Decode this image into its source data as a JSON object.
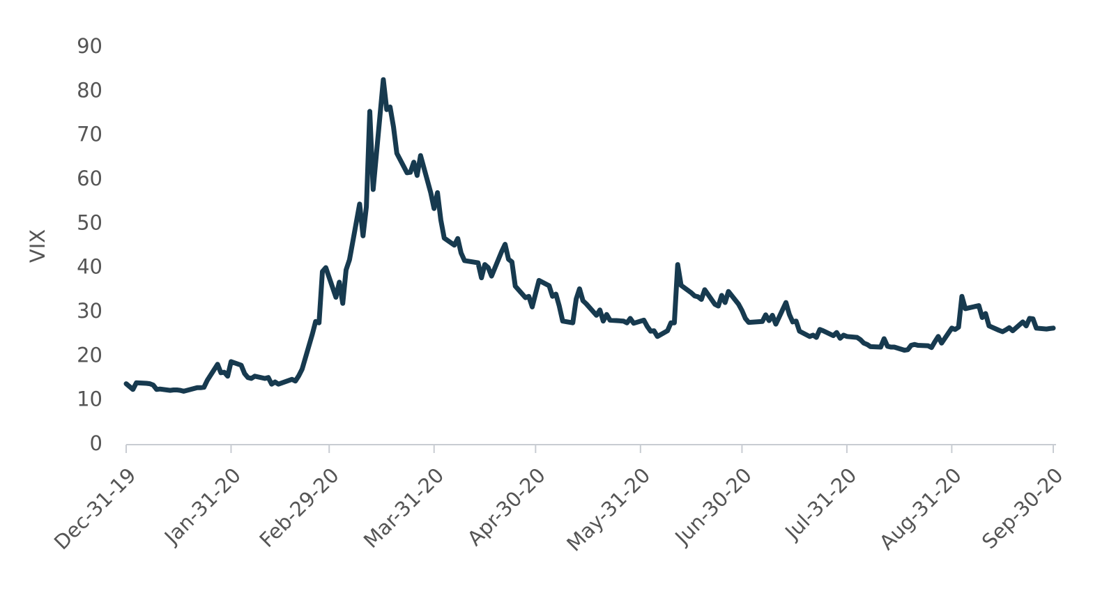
{
  "chart_data": {
    "type": "line",
    "ylabel": "VIX",
    "x": [
      "2019-12-31",
      "2020-01-02",
      "2020-01-03",
      "2020-01-06",
      "2020-01-07",
      "2020-01-08",
      "2020-01-09",
      "2020-01-10",
      "2020-01-13",
      "2020-01-14",
      "2020-01-15",
      "2020-01-16",
      "2020-01-17",
      "2020-01-21",
      "2020-01-22",
      "2020-01-23",
      "2020-01-24",
      "2020-01-27",
      "2020-01-28",
      "2020-01-29",
      "2020-01-30",
      "2020-01-31",
      "2020-02-03",
      "2020-02-04",
      "2020-02-05",
      "2020-02-06",
      "2020-02-07",
      "2020-02-10",
      "2020-02-11",
      "2020-02-12",
      "2020-02-13",
      "2020-02-14",
      "2020-02-18",
      "2020-02-19",
      "2020-02-20",
      "2020-02-21",
      "2020-02-24",
      "2020-02-25",
      "2020-02-26",
      "2020-02-27",
      "2020-02-28",
      "2020-03-02",
      "2020-03-03",
      "2020-03-04",
      "2020-03-05",
      "2020-03-06",
      "2020-03-09",
      "2020-03-10",
      "2020-03-11",
      "2020-03-12",
      "2020-03-13",
      "2020-03-16",
      "2020-03-17",
      "2020-03-18",
      "2020-03-19",
      "2020-03-20",
      "2020-03-23",
      "2020-03-24",
      "2020-03-25",
      "2020-03-26",
      "2020-03-27",
      "2020-03-30",
      "2020-03-31",
      "2020-04-01",
      "2020-04-02",
      "2020-04-03",
      "2020-04-06",
      "2020-04-07",
      "2020-04-08",
      "2020-04-09",
      "2020-04-13",
      "2020-04-14",
      "2020-04-15",
      "2020-04-16",
      "2020-04-17",
      "2020-04-20",
      "2020-04-21",
      "2020-04-22",
      "2020-04-23",
      "2020-04-24",
      "2020-04-27",
      "2020-04-28",
      "2020-04-29",
      "2020-04-30",
      "2020-05-01",
      "2020-05-04",
      "2020-05-05",
      "2020-05-06",
      "2020-05-07",
      "2020-05-08",
      "2020-05-11",
      "2020-05-12",
      "2020-05-13",
      "2020-05-14",
      "2020-05-15",
      "2020-05-18",
      "2020-05-19",
      "2020-05-20",
      "2020-05-21",
      "2020-05-22",
      "2020-05-26",
      "2020-05-27",
      "2020-05-28",
      "2020-05-29",
      "2020-06-01",
      "2020-06-02",
      "2020-06-03",
      "2020-06-04",
      "2020-06-05",
      "2020-06-08",
      "2020-06-09",
      "2020-06-10",
      "2020-06-11",
      "2020-06-12",
      "2020-06-15",
      "2020-06-16",
      "2020-06-17",
      "2020-06-18",
      "2020-06-19",
      "2020-06-22",
      "2020-06-23",
      "2020-06-24",
      "2020-06-25",
      "2020-06-26",
      "2020-06-29",
      "2020-06-30",
      "2020-07-01",
      "2020-07-02",
      "2020-07-06",
      "2020-07-07",
      "2020-07-08",
      "2020-07-09",
      "2020-07-10",
      "2020-07-13",
      "2020-07-14",
      "2020-07-15",
      "2020-07-16",
      "2020-07-17",
      "2020-07-20",
      "2020-07-21",
      "2020-07-22",
      "2020-07-23",
      "2020-07-24",
      "2020-07-27",
      "2020-07-28",
      "2020-07-29",
      "2020-07-30",
      "2020-07-31",
      "2020-08-03",
      "2020-08-04",
      "2020-08-05",
      "2020-08-06",
      "2020-08-07",
      "2020-08-10",
      "2020-08-11",
      "2020-08-12",
      "2020-08-13",
      "2020-08-14",
      "2020-08-17",
      "2020-08-18",
      "2020-08-19",
      "2020-08-20",
      "2020-08-21",
      "2020-08-24",
      "2020-08-25",
      "2020-08-26",
      "2020-08-27",
      "2020-08-28",
      "2020-08-31",
      "2020-09-01",
      "2020-09-02",
      "2020-09-03",
      "2020-09-04",
      "2020-09-08",
      "2020-09-09",
      "2020-09-10",
      "2020-09-11",
      "2020-09-14",
      "2020-09-15",
      "2020-09-16",
      "2020-09-17",
      "2020-09-18",
      "2020-09-21",
      "2020-09-22",
      "2020-09-23",
      "2020-09-24",
      "2020-09-25",
      "2020-09-28",
      "2020-09-29",
      "2020-09-30"
    ],
    "series": [
      {
        "color": "#173a4f",
        "values": [
          13.8,
          12.5,
          14.0,
          13.9,
          13.8,
          13.5,
          12.5,
          12.6,
          12.3,
          12.4,
          12.4,
          12.3,
          12.1,
          12.9,
          12.9,
          13.0,
          14.6,
          18.2,
          16.3,
          16.4,
          15.5,
          18.8,
          18.0,
          16.1,
          15.2,
          15.0,
          15.5,
          15.0,
          15.2,
          13.7,
          14.2,
          13.7,
          14.8,
          14.4,
          15.6,
          17.1,
          25.0,
          27.9,
          27.6,
          39.2,
          40.1,
          33.4,
          36.8,
          32.0,
          39.6,
          41.9,
          54.5,
          47.3,
          53.9,
          75.5,
          57.8,
          82.7,
          75.9,
          76.5,
          72.0,
          66.0,
          61.6,
          61.7,
          64.0,
          61.0,
          65.5,
          57.1,
          53.5,
          57.1,
          50.9,
          46.8,
          45.2,
          46.7,
          43.4,
          41.7,
          41.2,
          37.8,
          40.8,
          40.1,
          38.2,
          43.8,
          45.4,
          42.0,
          41.4,
          35.9,
          33.3,
          33.6,
          31.2,
          34.2,
          37.2,
          36.0,
          33.6,
          34.1,
          31.4,
          28.0,
          27.6,
          33.0,
          35.3,
          32.6,
          31.9,
          29.3,
          30.5,
          28.0,
          29.5,
          28.2,
          28.0,
          27.6,
          28.6,
          27.5,
          28.2,
          26.8,
          25.7,
          25.8,
          24.5,
          25.8,
          27.6,
          27.6,
          40.8,
          36.1,
          34.4,
          33.7,
          33.5,
          32.9,
          35.1,
          31.8,
          31.4,
          33.8,
          32.2,
          34.7,
          31.8,
          30.4,
          28.6,
          27.7,
          27.9,
          29.4,
          28.1,
          29.3,
          27.3,
          32.2,
          29.5,
          27.8,
          28.0,
          25.7,
          24.5,
          24.8,
          24.3,
          26.1,
          25.8,
          24.7,
          25.4,
          24.1,
          24.8,
          24.5,
          24.3,
          23.8,
          23.0,
          22.7,
          22.2,
          22.1,
          24.0,
          22.3,
          22.1,
          22.1,
          21.4,
          21.5,
          22.5,
          22.7,
          22.5,
          22.4,
          22.0,
          23.3,
          24.5,
          23.0,
          26.4,
          26.1,
          26.6,
          33.6,
          30.8,
          31.5,
          28.8,
          29.7,
          26.9,
          25.9,
          25.6,
          26.0,
          26.5,
          25.8,
          27.8,
          26.9,
          28.6,
          28.5,
          26.4,
          26.2,
          26.3,
          26.4
        ]
      }
    ],
    "xlim": [
      "2019-12-31",
      "2020-09-30"
    ],
    "xticks": [
      {
        "value": "2019-12-31",
        "label": "Dec-31-19"
      },
      {
        "value": "2020-01-31",
        "label": "Jan-31-20"
      },
      {
        "value": "2020-02-29",
        "label": "Feb-29-20"
      },
      {
        "value": "2020-03-31",
        "label": "Mar-31-20"
      },
      {
        "value": "2020-04-30",
        "label": "Apr-30-20"
      },
      {
        "value": "2020-05-31",
        "label": "May-31-20"
      },
      {
        "value": "2020-06-30",
        "label": "Jun-30-20"
      },
      {
        "value": "2020-07-31",
        "label": "Jul-31-20"
      },
      {
        "value": "2020-08-31",
        "label": "Aug-31-20"
      },
      {
        "value": "2020-09-30",
        "label": "Sep-30-20"
      }
    ],
    "ylim": [
      0,
      90
    ],
    "yticks": [
      0,
      10,
      20,
      30,
      40,
      50,
      60,
      70,
      80,
      90
    ],
    "grid": false
  }
}
